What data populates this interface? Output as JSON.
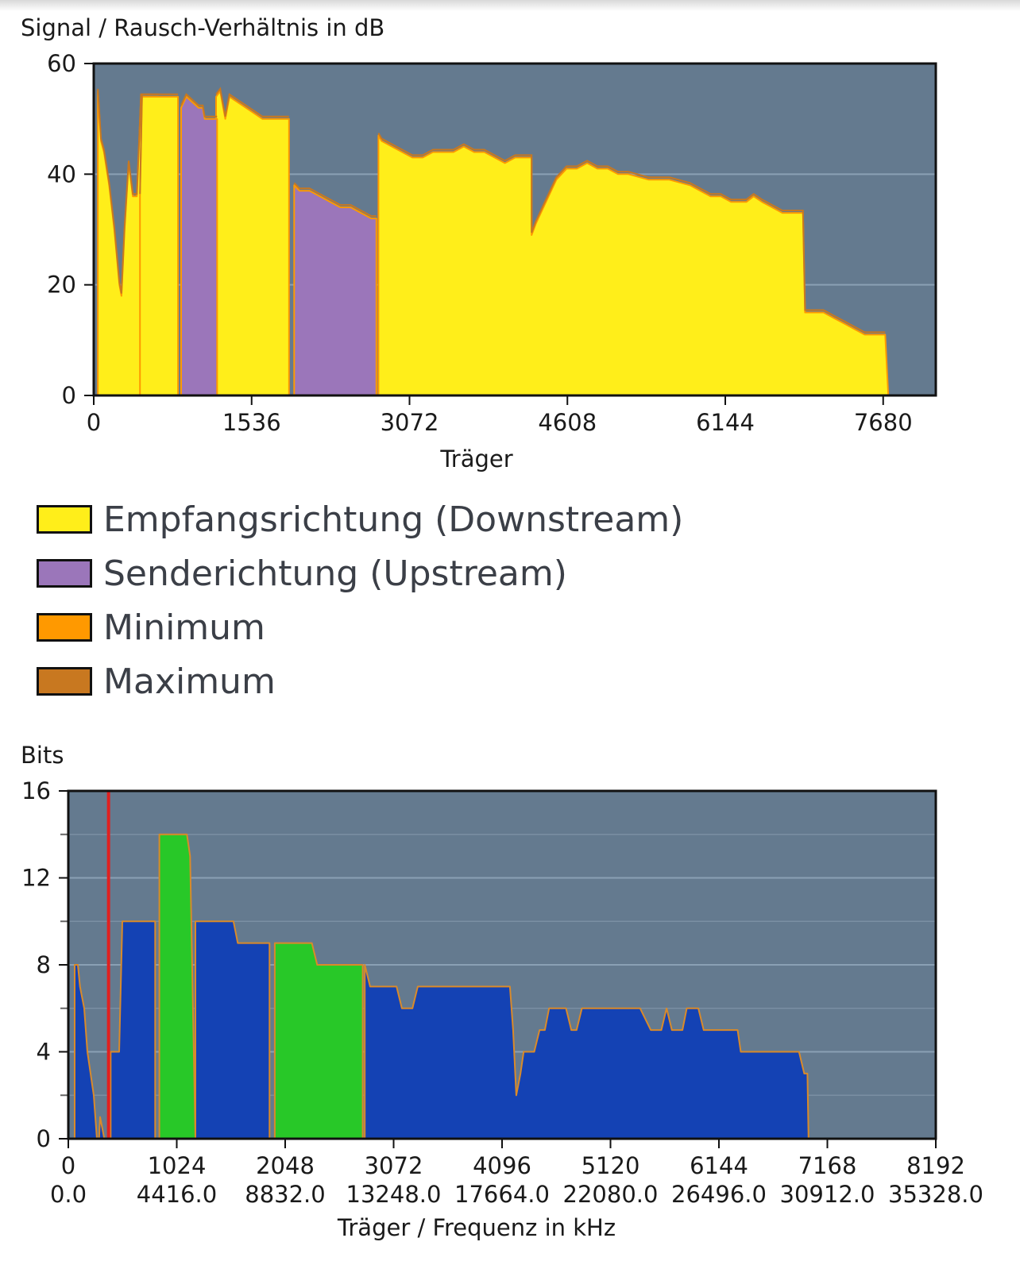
{
  "snr_chart": {
    "chart_data": {
      "type": "area",
      "title": "",
      "ylabel": "Signal / Rausch-Verhältnis in dB",
      "xlabel": "Träger",
      "xlim": [
        0,
        8192
      ],
      "ylim": [
        0,
        60
      ],
      "x_ticks": [
        0,
        1536,
        3072,
        4608,
        6144,
        7680
      ],
      "y_ticks": [
        0,
        20,
        40,
        60
      ],
      "grid": "horizontal",
      "colors": {
        "background": "#647a8f",
        "downstream": "#ffee1a",
        "upstream": "#9b76ba",
        "minimum": "#ff9900",
        "maximum": "#c87820"
      },
      "series": [
        {
          "name": "Empfangsrichtung (Downstream)",
          "segments": [
            [
              [
                40,
                0
              ],
              [
                40,
                55
              ],
              [
                70,
                46
              ],
              [
                100,
                44
              ],
              [
                150,
                38
              ],
              [
                200,
                30
              ],
              [
                250,
                20
              ],
              [
                270,
                18
              ],
              [
                300,
                30
              ],
              [
                340,
                42
              ],
              [
                380,
                36
              ],
              [
                420,
                36
              ],
              [
                460,
                54
              ],
              [
                520,
                54
              ],
              [
                580,
                54
              ],
              [
                630,
                54
              ],
              [
                630,
                0
              ]
            ],
            [
              [
                450,
                0
              ],
              [
                450,
                36
              ],
              [
                470,
                54
              ],
              [
                800,
                54
              ],
              [
                820,
                54
              ],
              [
                820,
                0
              ]
            ],
            [
              [
                1190,
                0
              ],
              [
                1190,
                54
              ],
              [
                1230,
                55
              ],
              [
                1280,
                50
              ],
              [
                1320,
                54
              ],
              [
                1400,
                53
              ],
              [
                1480,
                52
              ],
              [
                1560,
                51
              ],
              [
                1640,
                50
              ],
              [
                1700,
                50
              ],
              [
                1900,
                50
              ],
              [
                1900,
                0
              ]
            ],
            [
              [
                2770,
                0
              ],
              [
                2770,
                47
              ],
              [
                2800,
                46
              ],
              [
                2900,
                45
              ],
              [
                3000,
                44
              ],
              [
                3100,
                43
              ],
              [
                3200,
                43
              ],
              [
                3300,
                44
              ],
              [
                3400,
                44
              ],
              [
                3500,
                44
              ],
              [
                3600,
                45
              ],
              [
                3700,
                44
              ],
              [
                3800,
                44
              ],
              [
                3900,
                43
              ],
              [
                4000,
                42
              ],
              [
                4100,
                43
              ],
              [
                4150,
                43
              ],
              [
                4260,
                43
              ],
              [
                4260,
                29
              ],
              [
                4300,
                31
              ],
              [
                4400,
                35
              ],
              [
                4500,
                39
              ],
              [
                4600,
                41
              ],
              [
                4700,
                41
              ],
              [
                4800,
                42
              ],
              [
                4900,
                41
              ],
              [
                5000,
                41
              ],
              [
                5100,
                40
              ],
              [
                5200,
                40
              ],
              [
                5400,
                39
              ],
              [
                5600,
                39
              ],
              [
                5800,
                38
              ],
              [
                5900,
                37
              ],
              [
                6000,
                36
              ],
              [
                6100,
                36
              ],
              [
                6200,
                35
              ],
              [
                6350,
                35
              ],
              [
                6420,
                36
              ],
              [
                6500,
                35
              ],
              [
                6600,
                34
              ],
              [
                6700,
                33
              ],
              [
                6900,
                33
              ],
              [
                6920,
                15
              ],
              [
                7000,
                15
              ],
              [
                7100,
                15
              ],
              [
                7200,
                14
              ],
              [
                7300,
                13
              ],
              [
                7400,
                12
              ],
              [
                7500,
                11
              ],
              [
                7700,
                11
              ],
              [
                7730,
                0
              ]
            ]
          ]
        },
        {
          "name": "Senderichtung (Upstream)",
          "segments": [
            [
              [
                850,
                0
              ],
              [
                850,
                52
              ],
              [
                900,
                54
              ],
              [
                960,
                53
              ],
              [
                1020,
                52
              ],
              [
                1060,
                52
              ],
              [
                1080,
                50
              ],
              [
                1200,
                50
              ],
              [
                1200,
                0
              ]
            ],
            [
              [
                1950,
                0
              ],
              [
                1950,
                38
              ],
              [
                2000,
                37
              ],
              [
                2100,
                37
              ],
              [
                2200,
                36
              ],
              [
                2300,
                35
              ],
              [
                2400,
                34
              ],
              [
                2500,
                34
              ],
              [
                2600,
                33
              ],
              [
                2700,
                32
              ],
              [
                2750,
                32
              ],
              [
                2750,
                0
              ]
            ]
          ]
        }
      ]
    }
  },
  "bits_chart": {
    "chart_data": {
      "type": "area",
      "title": "",
      "ylabel": "Bits",
      "xlabel": "Träger / Frequenz in kHz",
      "xlim": [
        0,
        8192
      ],
      "ylim": [
        0,
        16
      ],
      "x_ticks": [
        0,
        1024,
        2048,
        3072,
        4096,
        5120,
        6144,
        7168,
        8192
      ],
      "x_ticks_secondary": [
        "0.0",
        "4416.0",
        "8832.0",
        "13248.0",
        "17664.0",
        "22080.0",
        "26496.0",
        "30912.0",
        "35328.0"
      ],
      "y_ticks": [
        0,
        4,
        8,
        12,
        16
      ],
      "grid": "horizontal",
      "marker_line_x": 380,
      "colors": {
        "background": "#647a8f",
        "downstream": "#1442b4",
        "upstream": "#28c828",
        "outline": "#d98a2a",
        "marker": "#e02020"
      },
      "series": [
        {
          "name": "downstream",
          "segments": [
            [
              [
                60,
                0
              ],
              [
                60,
                8
              ],
              [
                90,
                8
              ],
              [
                110,
                7
              ],
              [
                150,
                6
              ],
              [
                180,
                4
              ],
              [
                210,
                3
              ],
              [
                240,
                2
              ],
              [
                270,
                0
              ],
              [
                290,
                0
              ],
              [
                300,
                1
              ],
              [
                340,
                0
              ],
              [
                360,
                0
              ],
              [
                360,
                0
              ]
            ],
            [
              [
                400,
                0
              ],
              [
                400,
                4
              ],
              [
                460,
                4
              ],
              [
                480,
                4
              ],
              [
                510,
                10
              ],
              [
                540,
                10
              ],
              [
                580,
                10
              ],
              [
                620,
                10
              ],
              [
                660,
                10
              ],
              [
                820,
                10
              ],
              [
                820,
                0
              ]
            ],
            [
              [
                1200,
                0
              ],
              [
                1200,
                10
              ],
              [
                1240,
                10
              ],
              [
                1280,
                10
              ],
              [
                1320,
                10
              ],
              [
                1400,
                10
              ],
              [
                1560,
                10
              ],
              [
                1600,
                9
              ],
              [
                1700,
                9
              ],
              [
                1900,
                9
              ],
              [
                1900,
                0
              ]
            ],
            [
              [
                2800,
                0
              ],
              [
                2800,
                8
              ],
              [
                2850,
                7
              ],
              [
                3000,
                7
              ],
              [
                3100,
                7
              ],
              [
                3150,
                6
              ],
              [
                3250,
                6
              ],
              [
                3300,
                7
              ],
              [
                3400,
                7
              ],
              [
                3600,
                7
              ],
              [
                3800,
                7
              ],
              [
                4000,
                7
              ],
              [
                4170,
                7
              ],
              [
                4200,
                5
              ],
              [
                4230,
                2
              ],
              [
                4270,
                3
              ],
              [
                4300,
                4
              ],
              [
                4400,
                4
              ],
              [
                4450,
                5
              ],
              [
                4500,
                5
              ],
              [
                4540,
                6
              ],
              [
                4700,
                6
              ],
              [
                4750,
                5
              ],
              [
                4800,
                5
              ],
              [
                4850,
                6
              ],
              [
                5000,
                6
              ],
              [
                5200,
                6
              ],
              [
                5400,
                6
              ],
              [
                5500,
                5
              ],
              [
                5600,
                5
              ],
              [
                5650,
                6
              ],
              [
                5700,
                5
              ],
              [
                5800,
                5
              ],
              [
                5840,
                6
              ],
              [
                5950,
                6
              ],
              [
                6000,
                5
              ],
              [
                6200,
                5
              ],
              [
                6320,
                5
              ],
              [
                6350,
                4
              ],
              [
                6500,
                4
              ],
              [
                6600,
                4
              ],
              [
                6900,
                4
              ],
              [
                6950,
                3
              ],
              [
                6980,
                3
              ],
              [
                6990,
                0
              ]
            ]
          ]
        },
        {
          "name": "upstream",
          "segments": [
            [
              [
                860,
                0
              ],
              [
                860,
                14
              ],
              [
                900,
                14
              ],
              [
                950,
                14
              ],
              [
                1000,
                14
              ],
              [
                1050,
                14
              ],
              [
                1120,
                14
              ],
              [
                1150,
                13
              ],
              [
                1200,
                0
              ]
            ],
            [
              [
                1950,
                0
              ],
              [
                1950,
                9
              ],
              [
                2000,
                9
              ],
              [
                2100,
                9
              ],
              [
                2200,
                9
              ],
              [
                2300,
                9
              ],
              [
                2350,
                8
              ],
              [
                2400,
                8
              ],
              [
                2500,
                8
              ],
              [
                2600,
                8
              ],
              [
                2720,
                8
              ],
              [
                2780,
                8
              ],
              [
                2780,
                0
              ]
            ]
          ]
        }
      ]
    }
  },
  "legend": {
    "items": [
      {
        "label": "Empfangsrichtung (Downstream)",
        "color": "#ffee1a"
      },
      {
        "label": "Senderichtung (Upstream)",
        "color": "#9b76ba"
      },
      {
        "label": "Minimum",
        "color": "#ff9900"
      },
      {
        "label": "Maximum",
        "color": "#c87820"
      }
    ]
  }
}
